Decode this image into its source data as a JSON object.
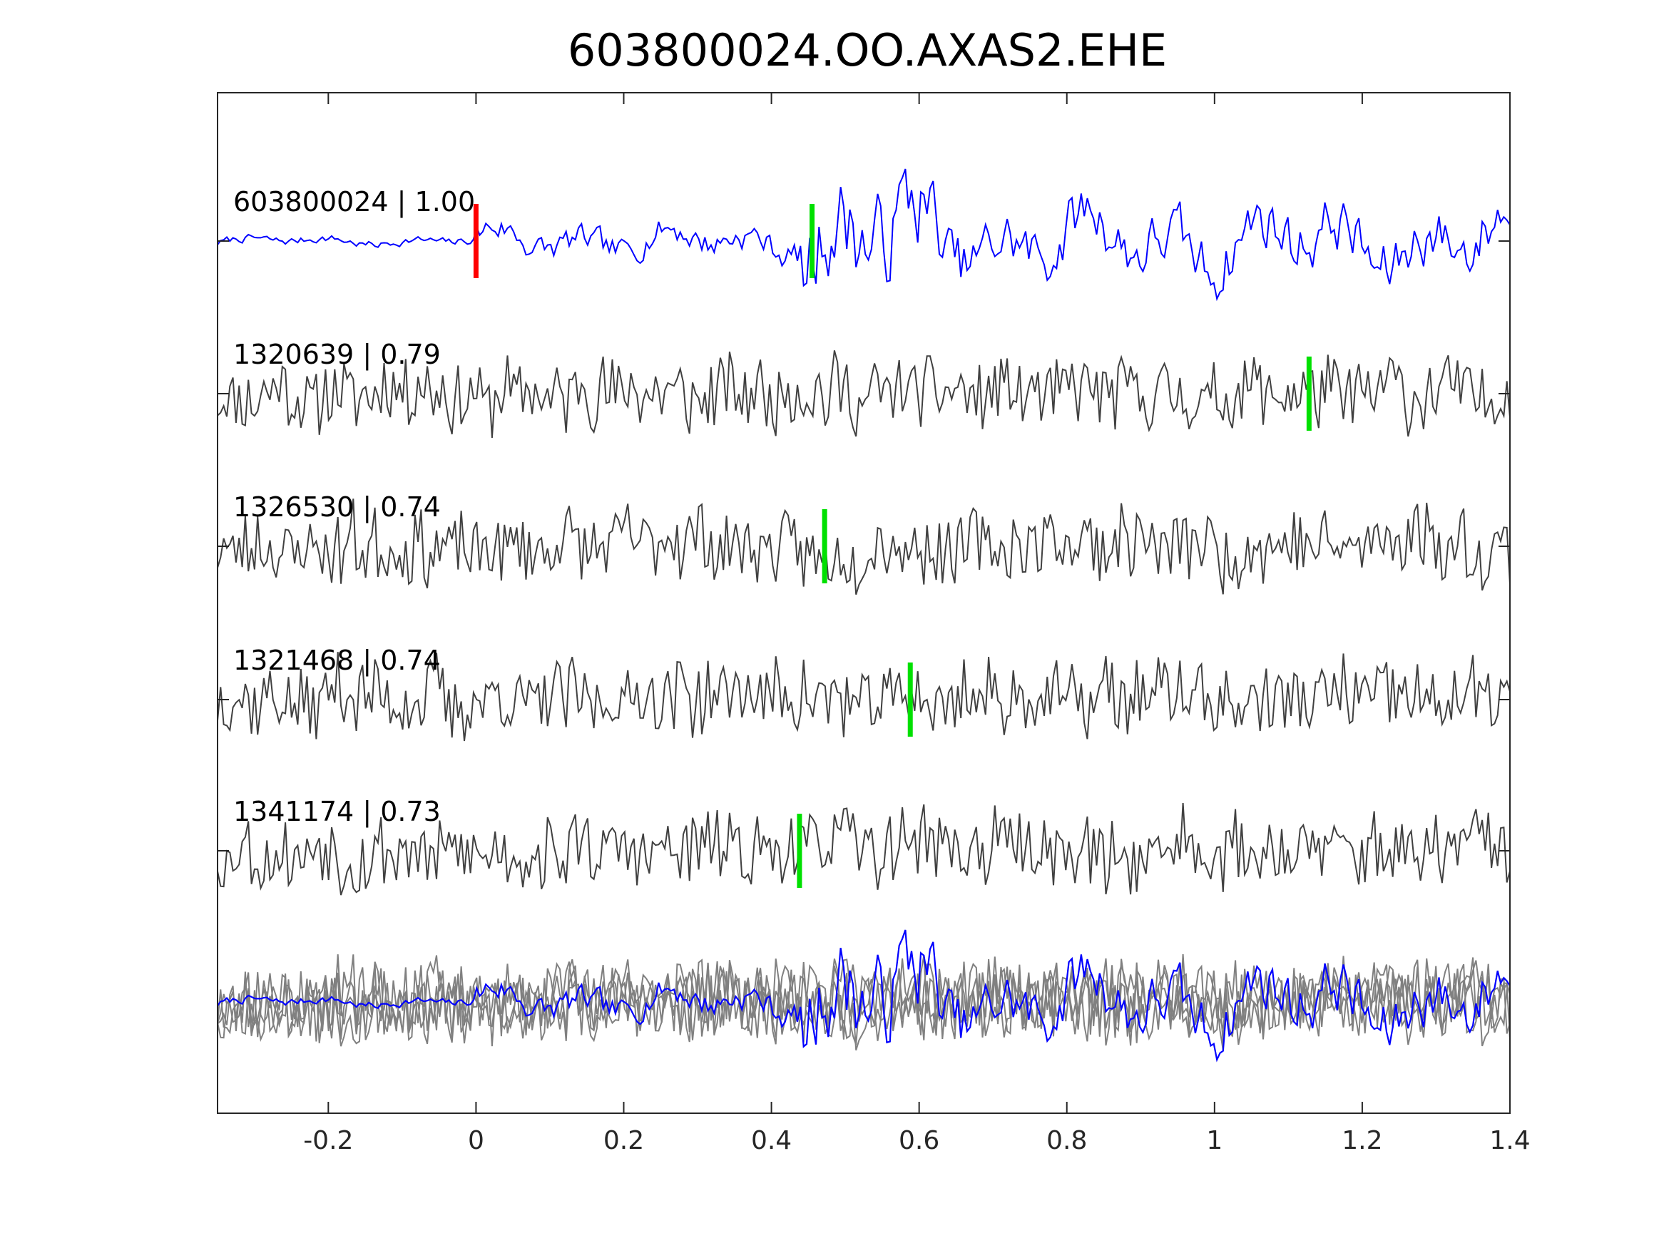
{
  "chart_data": {
    "type": "line",
    "title": "603800024.OO.AXAS2.EHE",
    "xlabel": "",
    "ylabel": "",
    "xlim": [
      -0.35,
      1.4
    ],
    "xticks": [
      -0.2,
      0,
      0.2,
      0.4,
      0.6,
      0.8,
      1,
      1.2,
      1.4
    ],
    "xtick_labels": [
      "-0.2",
      "0",
      "0.2",
      "0.4",
      "0.6",
      "0.8",
      "1",
      "1.2",
      "1.4"
    ],
    "grid": false,
    "colors": {
      "template": "#0000ff",
      "match": "#404040",
      "stack": "#808080",
      "reference_pick": "#ff0000",
      "detected_pick": "#00e000",
      "axes": "#262626"
    },
    "traces": [
      {
        "label": "603800024 | 1.00",
        "event_id": "603800024",
        "correlation": 1.0,
        "picks": [
          {
            "x": 0.0,
            "color": "red"
          },
          {
            "x": 0.455,
            "color": "green"
          }
        ],
        "is_template": true
      },
      {
        "label": "1320639 | 0.79",
        "event_id": "1320639",
        "correlation": 0.79,
        "picks": [
          {
            "x": 1.128,
            "color": "green"
          }
        ]
      },
      {
        "label": "1326530 | 0.74",
        "event_id": "1326530",
        "correlation": 0.74,
        "picks": [
          {
            "x": 0.472,
            "color": "green"
          }
        ]
      },
      {
        "label": "1321468 | 0.74",
        "event_id": "1321468",
        "correlation": 0.74,
        "picks": [
          {
            "x": 0.588,
            "color": "green"
          }
        ]
      },
      {
        "label": "1341174 | 0.73",
        "event_id": "1341174",
        "correlation": 0.73,
        "picks": [
          {
            "x": 0.438,
            "color": "green"
          }
        ]
      }
    ],
    "overlay": {
      "description": "all traces superimposed",
      "highlight": "603800024"
    }
  }
}
